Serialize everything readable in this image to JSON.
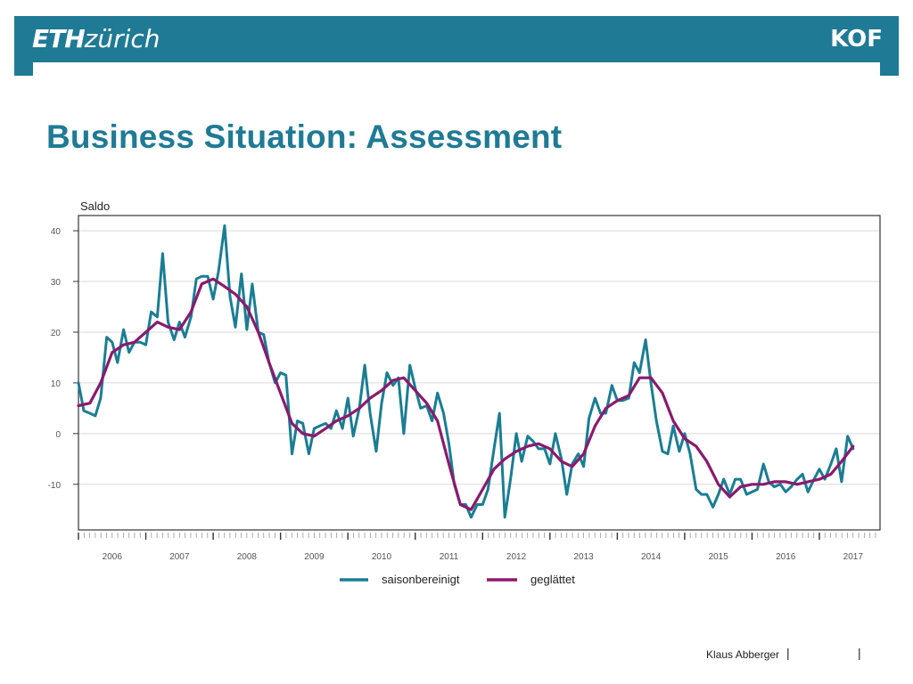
{
  "header": {
    "logo_left_bold": "ETH",
    "logo_left_text": "zürich",
    "logo_right": "KOF"
  },
  "page_title": "Business Situation: Assessment",
  "footer": {
    "author": "Klaus Abberger",
    "separator": "|"
  },
  "colors": {
    "brand": "#1f7a95",
    "series_raw": "#1a7d93",
    "series_smooth": "#8a1a6e"
  },
  "chart_data": {
    "type": "line",
    "title": "",
    "ylabel": "Saldo",
    "xlabel": "",
    "ylim": [
      -19,
      43
    ],
    "xlim": [
      2005.5,
      2017.4
    ],
    "yticks": [
      -10,
      0,
      10,
      20,
      30,
      40
    ],
    "xtick_labels": [
      "2006",
      "2007",
      "2008",
      "2009",
      "2010",
      "2011",
      "2012",
      "2013",
      "2014",
      "2015",
      "2016",
      "2017"
    ],
    "grid": "horizontal",
    "legend": "bottom",
    "series": [
      {
        "name": "saisonbereinigt",
        "color": "#1a7d93",
        "x": [
          2005.5,
          2005.58,
          2005.67,
          2005.75,
          2005.83,
          2005.92,
          2006.0,
          2006.08,
          2006.17,
          2006.25,
          2006.33,
          2006.42,
          2006.5,
          2006.58,
          2006.67,
          2006.75,
          2006.83,
          2006.92,
          2007.0,
          2007.08,
          2007.17,
          2007.25,
          2007.33,
          2007.42,
          2007.5,
          2007.58,
          2007.67,
          2007.75,
          2007.83,
          2007.92,
          2008.0,
          2008.08,
          2008.17,
          2008.25,
          2008.33,
          2008.42,
          2008.5,
          2008.58,
          2008.67,
          2008.75,
          2008.83,
          2008.92,
          2009.0,
          2009.08,
          2009.17,
          2009.25,
          2009.33,
          2009.42,
          2009.5,
          2009.58,
          2009.67,
          2009.75,
          2009.83,
          2009.92,
          2010.0,
          2010.08,
          2010.17,
          2010.25,
          2010.33,
          2010.42,
          2010.5,
          2010.58,
          2010.67,
          2010.75,
          2010.83,
          2010.92,
          2011.0,
          2011.08,
          2011.17,
          2011.25,
          2011.33,
          2011.42,
          2011.5,
          2011.58,
          2011.67,
          2011.75,
          2011.83,
          2011.92,
          2012.0,
          2012.08,
          2012.17,
          2012.25,
          2012.33,
          2012.42,
          2012.5,
          2012.58,
          2012.67,
          2012.75,
          2012.83,
          2012.92,
          2013.0,
          2013.08,
          2013.17,
          2013.25,
          2013.33,
          2013.42,
          2013.5,
          2013.58,
          2013.67,
          2013.75,
          2013.83,
          2013.92,
          2014.0,
          2014.08,
          2014.17,
          2014.25,
          2014.33,
          2014.42,
          2014.5,
          2014.58,
          2014.67,
          2014.75,
          2014.83,
          2014.92,
          2015.0,
          2015.08,
          2015.17,
          2015.25,
          2015.33,
          2015.42,
          2015.5,
          2015.58,
          2015.67,
          2015.75,
          2015.83,
          2015.92,
          2016.0,
          2016.08,
          2016.17,
          2016.25,
          2016.33,
          2016.42,
          2016.5,
          2016.58,
          2016.67,
          2016.75,
          2016.83,
          2016.92,
          2017.0
        ],
        "y": [
          10,
          4.5,
          4,
          3.5,
          7,
          19,
          18,
          14,
          20.5,
          16,
          18,
          18,
          17.5,
          24,
          23,
          35.5,
          22,
          18.5,
          22,
          19,
          23,
          30.5,
          31,
          31,
          26.5,
          32,
          41,
          27,
          21,
          31.5,
          20.5,
          29.5,
          20,
          19.5,
          14,
          10,
          12,
          11.5,
          -4,
          2.5,
          2,
          -4,
          1,
          1.5,
          2,
          1,
          4.5,
          1,
          7,
          -0.5,
          5,
          13.5,
          4,
          -3.5,
          6,
          12,
          9.5,
          11,
          0,
          13.5,
          9,
          5,
          5.5,
          2.5,
          8,
          4,
          -2,
          -10,
          -14,
          -14,
          -16.5,
          -14,
          -14,
          -11,
          -3,
          4,
          -16.5,
          -8.5,
          0,
          -5.5,
          -0.5,
          -1.5,
          -3,
          -3,
          -6,
          0,
          -5,
          -12,
          -6,
          -4,
          -6.5,
          3,
          7,
          4,
          4,
          9.5,
          6.5,
          6.5,
          7,
          14,
          12,
          18.5,
          10,
          2.5,
          -3.5,
          -4,
          1.5,
          -3.5,
          0,
          -4,
          -11,
          -12,
          -12,
          -14.5,
          -12,
          -9,
          -12,
          -9,
          -9,
          -12,
          -11.5,
          -11,
          -6,
          -9.5,
          -10.5,
          -10,
          -11.5,
          -10.5,
          -9,
          -8,
          -11.5,
          -9,
          -7,
          -9,
          -6,
          -3,
          -9.5,
          -0.5,
          -3
        ]
      },
      {
        "name": "geglättet",
        "color": "#8a1a6e",
        "x": [
          2005.5,
          2005.67,
          2005.83,
          2006.0,
          2006.17,
          2006.33,
          2006.5,
          2006.67,
          2006.83,
          2007.0,
          2007.17,
          2007.33,
          2007.5,
          2007.67,
          2007.83,
          2008.0,
          2008.17,
          2008.33,
          2008.5,
          2008.67,
          2008.83,
          2009.0,
          2009.17,
          2009.33,
          2009.5,
          2009.67,
          2009.83,
          2010.0,
          2010.17,
          2010.33,
          2010.5,
          2010.67,
          2010.83,
          2011.0,
          2011.17,
          2011.33,
          2011.5,
          2011.67,
          2011.83,
          2012.0,
          2012.17,
          2012.33,
          2012.5,
          2012.67,
          2012.83,
          2013.0,
          2013.17,
          2013.33,
          2013.5,
          2013.67,
          2013.83,
          2014.0,
          2014.17,
          2014.33,
          2014.5,
          2014.67,
          2014.83,
          2015.0,
          2015.17,
          2015.33,
          2015.5,
          2015.67,
          2015.83,
          2016.0,
          2016.17,
          2016.33,
          2016.5,
          2016.67,
          2016.83,
          2017.0
        ],
        "y": [
          5.5,
          6,
          10,
          16,
          17.5,
          18,
          20,
          22,
          21,
          20.5,
          24,
          29.5,
          30.5,
          29,
          27.5,
          25,
          20,
          14,
          8,
          2,
          0,
          -0.5,
          1,
          2.5,
          3.5,
          5,
          7,
          8.5,
          10.5,
          11,
          8.5,
          6,
          2.5,
          -6,
          -14,
          -15,
          -11,
          -7,
          -5,
          -3.5,
          -2.5,
          -2,
          -3,
          -5.5,
          -6.5,
          -4,
          1.5,
          5,
          6.5,
          7.5,
          11,
          11,
          8,
          2.5,
          -1,
          -2.5,
          -5.5,
          -10,
          -12.5,
          -10.5,
          -10,
          -10,
          -9.5,
          -9.5,
          -10,
          -9.5,
          -9,
          -8,
          -5.5,
          -2.5
        ]
      }
    ]
  }
}
